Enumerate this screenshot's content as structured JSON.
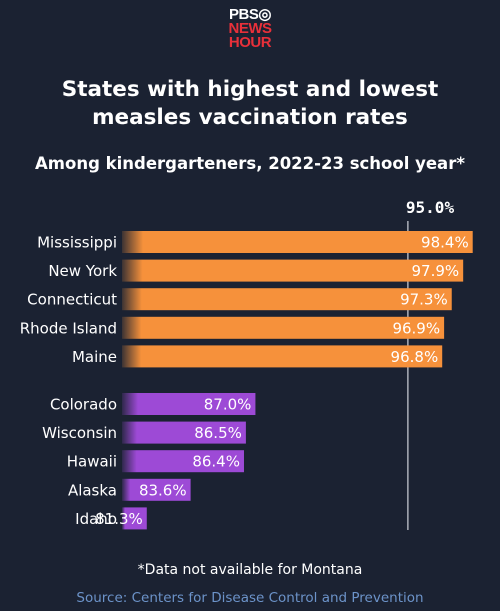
{
  "logo": {
    "line1": "PBS◎",
    "line2": "NEWS",
    "line3": "HOUR"
  },
  "title_line1": "States with highest and lowest",
  "title_line2": "measles vaccination rates",
  "subtitle": "Among kindergarteners, 2022-23 school year*",
  "reference_label": "95.0%",
  "footnote": "*Data not available for Montana",
  "source": "Source: Centers for Disease Control and Prevention",
  "colors": {
    "background": "#1b2232",
    "highest": "#f6913b",
    "lowest": "#9d4ad6",
    "reference_line": "#cfd3da"
  },
  "chart_data": {
    "type": "bar",
    "orientation": "horizontal",
    "title": "States with highest and lowest measles vaccination rates",
    "subtitle": "Among kindergarteners, 2022-23 school year*",
    "reference": {
      "value": 95.0,
      "label": "95.0%"
    },
    "groups": [
      {
        "color": "#f6913b",
        "items": [
          {
            "state": "Mississippi",
            "value": 98.4,
            "label": "98.4%"
          },
          {
            "state": "New York",
            "value": 97.9,
            "label": "97.9%"
          },
          {
            "state": "Connecticut",
            "value": 97.3,
            "label": "97.3%"
          },
          {
            "state": "Rhode Island",
            "value": 96.9,
            "label": "96.9%"
          },
          {
            "state": "Maine",
            "value": 96.8,
            "label": "96.8%"
          }
        ]
      },
      {
        "color": "#9d4ad6",
        "items": [
          {
            "state": "Colorado",
            "value": 87.0,
            "label": "87.0%"
          },
          {
            "state": "Wisconsin",
            "value": 86.5,
            "label": "86.5%"
          },
          {
            "state": "Hawaii",
            "value": 86.4,
            "label": "86.4%"
          },
          {
            "state": "Alaska",
            "value": 83.6,
            "label": "83.6%"
          },
          {
            "state": "Idaho",
            "value": 81.3,
            "label": "81.3%"
          }
        ]
      }
    ]
  }
}
